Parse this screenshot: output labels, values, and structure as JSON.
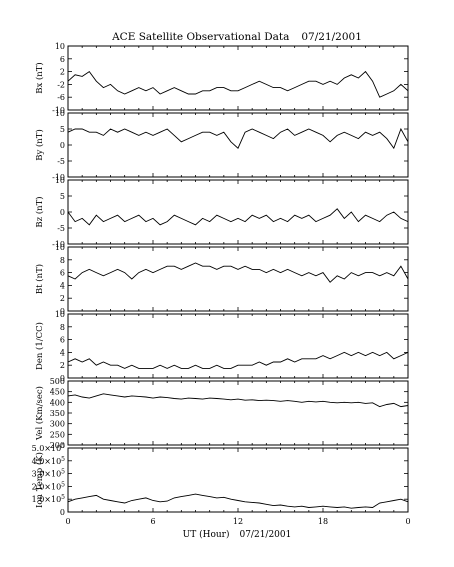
{
  "title": "ACE Satellite Observational Data",
  "title_date": "07/21/2001",
  "xlabel": "UT (Hour)",
  "xlabel_date": "07/21/2001",
  "x_ticks": [
    "0",
    "6",
    "12",
    "18",
    "0"
  ],
  "chart_data": [
    {
      "type": "line",
      "ylabel": "Bx (nT)",
      "ylim": [
        -10,
        10
      ],
      "y_ticks": [
        10,
        6,
        2,
        -2,
        -6,
        -10
      ],
      "y_tick_labels": [
        "10",
        "6",
        "2",
        "-2",
        "-6",
        "-10"
      ],
      "xlim": [
        0,
        24
      ],
      "x": [
        0,
        0.5,
        1,
        1.5,
        2,
        2.5,
        3,
        3.5,
        4,
        4.5,
        5,
        5.5,
        6,
        6.5,
        7,
        7.5,
        8,
        8.5,
        9,
        9.5,
        10,
        10.5,
        11,
        11.5,
        12,
        12.5,
        13,
        13.5,
        14,
        14.5,
        15,
        15.5,
        16,
        16.5,
        17,
        17.5,
        18,
        18.5,
        19,
        19.5,
        20,
        20.5,
        21,
        21.5,
        22,
        22.5,
        23,
        23.5,
        24
      ],
      "values": [
        -1,
        1,
        0.5,
        2,
        -1,
        -3,
        -2,
        -4,
        -5,
        -4,
        -3,
        -4,
        -3,
        -5,
        -4,
        -3,
        -4,
        -5,
        -5,
        -4,
        -4,
        -3,
        -3,
        -4,
        -4,
        -3,
        -2,
        -1,
        -2,
        -3,
        -3,
        -4,
        -3,
        -2,
        -1,
        -1,
        -2,
        -1,
        -2,
        0,
        1,
        0,
        2,
        -1,
        -6,
        -5,
        -4,
        -2,
        -4
      ]
    },
    {
      "type": "line",
      "ylabel": "By (nT)",
      "ylim": [
        -10,
        10
      ],
      "y_ticks": [
        10,
        5,
        0,
        -5,
        -10
      ],
      "y_tick_labels": [
        "10",
        "5",
        "0",
        "-5",
        "-10"
      ],
      "xlim": [
        0,
        24
      ],
      "x": [
        0,
        0.5,
        1,
        1.5,
        2,
        2.5,
        3,
        3.5,
        4,
        4.5,
        5,
        5.5,
        6,
        6.5,
        7,
        7.5,
        8,
        8.5,
        9,
        9.5,
        10,
        10.5,
        11,
        11.5,
        12,
        12.5,
        13,
        13.5,
        14,
        14.5,
        15,
        15.5,
        16,
        16.5,
        17,
        17.5,
        18,
        18.5,
        19,
        19.5,
        20,
        20.5,
        21,
        21.5,
        22,
        22.5,
        23,
        23.5,
        24
      ],
      "values": [
        4,
        5,
        5,
        4,
        4,
        3,
        5,
        4,
        5,
        4,
        3,
        4,
        3,
        4,
        5,
        3,
        1,
        2,
        3,
        4,
        4,
        3,
        4,
        1,
        -1,
        4,
        5,
        4,
        3,
        2,
        4,
        5,
        3,
        4,
        5,
        4,
        3,
        1,
        3,
        4,
        3,
        2,
        4,
        3,
        4,
        2,
        -1,
        5,
        1
      ]
    },
    {
      "type": "line",
      "ylabel": "Bz (nT)",
      "ylim": [
        -10,
        10
      ],
      "y_ticks": [
        10,
        5,
        0,
        -5,
        -10
      ],
      "y_tick_labels": [
        "10",
        "5",
        "0",
        "-5",
        "-10"
      ],
      "xlim": [
        0,
        24
      ],
      "x": [
        0,
        0.5,
        1,
        1.5,
        2,
        2.5,
        3,
        3.5,
        4,
        4.5,
        5,
        5.5,
        6,
        6.5,
        7,
        7.5,
        8,
        8.5,
        9,
        9.5,
        10,
        10.5,
        11,
        11.5,
        12,
        12.5,
        13,
        13.5,
        14,
        14.5,
        15,
        15.5,
        16,
        16.5,
        17,
        17.5,
        18,
        18.5,
        19,
        19.5,
        20,
        20.5,
        21,
        21.5,
        22,
        22.5,
        23,
        23.5,
        24
      ],
      "values": [
        0,
        -3,
        -2,
        -4,
        -1,
        -3,
        -2,
        -1,
        -3,
        -2,
        -1,
        -3,
        -2,
        -4,
        -3,
        -1,
        -2,
        -3,
        -4,
        -2,
        -3,
        -1,
        -2,
        -3,
        -2,
        -3,
        -1,
        -2,
        -1,
        -3,
        -2,
        -3,
        -1,
        -2,
        -1,
        -3,
        -2,
        -1,
        1,
        -2,
        0,
        -3,
        -1,
        -2,
        -3,
        -1,
        0,
        -2,
        -3
      ]
    },
    {
      "type": "line",
      "ylabel": "Bt (nT)",
      "ylim": [
        0,
        10
      ],
      "y_ticks": [
        10,
        8,
        6,
        4,
        2,
        0
      ],
      "y_tick_labels": [
        "10",
        "8",
        "6",
        "4",
        "2",
        "0"
      ],
      "xlim": [
        0,
        24
      ],
      "x": [
        0,
        0.5,
        1,
        1.5,
        2,
        2.5,
        3,
        3.5,
        4,
        4.5,
        5,
        5.5,
        6,
        6.5,
        7,
        7.5,
        8,
        8.5,
        9,
        9.5,
        10,
        10.5,
        11,
        11.5,
        12,
        12.5,
        13,
        13.5,
        14,
        14.5,
        15,
        15.5,
        16,
        16.5,
        17,
        17.5,
        18,
        18.5,
        19,
        19.5,
        20,
        20.5,
        21,
        21.5,
        22,
        22.5,
        23,
        23.5,
        24
      ],
      "values": [
        5.5,
        5,
        6,
        6.5,
        6,
        5.5,
        6,
        6.5,
        6,
        5,
        6,
        6.5,
        6,
        6.5,
        7,
        7,
        6.5,
        7,
        7.5,
        7,
        7,
        6.5,
        7,
        7,
        6.5,
        7,
        6.5,
        6.5,
        6,
        6.5,
        6,
        6.5,
        6,
        5.5,
        6,
        5.5,
        6,
        4.5,
        5.5,
        5,
        6,
        5.5,
        6,
        6,
        5.5,
        6,
        5.5,
        7,
        5
      ]
    },
    {
      "type": "line",
      "ylabel": "Den (1/CC)",
      "ylim": [
        0,
        10
      ],
      "y_ticks": [
        10,
        8,
        6,
        4,
        2,
        0
      ],
      "y_tick_labels": [
        "10",
        "8",
        "6",
        "4",
        "2",
        "0"
      ],
      "xlim": [
        0,
        24
      ],
      "x": [
        0,
        0.5,
        1,
        1.5,
        2,
        2.5,
        3,
        3.5,
        4,
        4.5,
        5,
        5.5,
        6,
        6.5,
        7,
        7.5,
        8,
        8.5,
        9,
        9.5,
        10,
        10.5,
        11,
        11.5,
        12,
        12.5,
        13,
        13.5,
        14,
        14.5,
        15,
        15.5,
        16,
        16.5,
        17,
        17.5,
        18,
        18.5,
        19,
        19.5,
        20,
        20.5,
        21,
        21.5,
        22,
        22.5,
        23,
        23.5,
        24
      ],
      "values": [
        2.5,
        3,
        2.5,
        3,
        2,
        2.5,
        2,
        2,
        1.5,
        2,
        1.5,
        1.5,
        1.5,
        2,
        1.5,
        2,
        1.5,
        1.5,
        2,
        1.5,
        1.5,
        2,
        1.5,
        1.5,
        2,
        2,
        2,
        2.5,
        2,
        2.5,
        2.5,
        3,
        2.5,
        3,
        3,
        3,
        3.5,
        3,
        3.5,
        4,
        3.5,
        4,
        3.5,
        4,
        3.5,
        4,
        3,
        3.5,
        4
      ]
    },
    {
      "type": "line",
      "ylabel": "Vel (Km/sec)",
      "ylim": [
        200,
        500
      ],
      "y_ticks": [
        500,
        450,
        400,
        350,
        300,
        250,
        200
      ],
      "y_tick_labels": [
        "500",
        "450",
        "400",
        "350",
        "300",
        "250",
        "200"
      ],
      "xlim": [
        0,
        24
      ],
      "x": [
        0,
        0.5,
        1,
        1.5,
        2,
        2.5,
        3,
        3.5,
        4,
        4.5,
        5,
        5.5,
        6,
        6.5,
        7,
        7.5,
        8,
        8.5,
        9,
        9.5,
        10,
        10.5,
        11,
        11.5,
        12,
        12.5,
        13,
        13.5,
        14,
        14.5,
        15,
        15.5,
        16,
        16.5,
        17,
        17.5,
        18,
        18.5,
        19,
        19.5,
        20,
        20.5,
        21,
        21.5,
        22,
        22.5,
        23,
        23.5,
        24
      ],
      "values": [
        430,
        435,
        425,
        420,
        430,
        440,
        435,
        430,
        425,
        430,
        428,
        425,
        420,
        425,
        422,
        418,
        415,
        420,
        418,
        415,
        420,
        418,
        415,
        412,
        415,
        410,
        412,
        408,
        410,
        408,
        405,
        408,
        405,
        400,
        405,
        402,
        405,
        400,
        398,
        400,
        398,
        400,
        395,
        398,
        380,
        390,
        395,
        380,
        385
      ]
    },
    {
      "type": "line",
      "ylabel": "Ion Temp (K)",
      "ylim": [
        0,
        500000
      ],
      "y_ticks": [
        500000,
        400000,
        300000,
        200000,
        100000,
        0
      ],
      "y_tick_mantissas": [
        "5.0",
        "4.0",
        "3.0",
        "2.0",
        "1.0",
        "0"
      ],
      "y_tick_exponent": "5",
      "xlim": [
        0,
        24
      ],
      "x": [
        0,
        0.5,
        1,
        1.5,
        2,
        2.5,
        3,
        3.5,
        4,
        4.5,
        5,
        5.5,
        6,
        6.5,
        7,
        7.5,
        8,
        8.5,
        9,
        9.5,
        10,
        10.5,
        11,
        11.5,
        12,
        12.5,
        13,
        13.5,
        14,
        14.5,
        15,
        15.5,
        16,
        16.5,
        17,
        17.5,
        18,
        18.5,
        19,
        19.5,
        20,
        20.5,
        21,
        21.5,
        22,
        22.5,
        23,
        23.5,
        24
      ],
      "values": [
        80000,
        100000,
        110000,
        120000,
        130000,
        100000,
        90000,
        80000,
        70000,
        90000,
        100000,
        110000,
        90000,
        80000,
        85000,
        110000,
        120000,
        130000,
        140000,
        130000,
        120000,
        110000,
        115000,
        100000,
        90000,
        80000,
        75000,
        70000,
        60000,
        50000,
        55000,
        45000,
        40000,
        45000,
        35000,
        40000,
        45000,
        40000,
        35000,
        40000,
        30000,
        35000,
        40000,
        35000,
        70000,
        80000,
        90000,
        100000,
        80000
      ]
    }
  ]
}
